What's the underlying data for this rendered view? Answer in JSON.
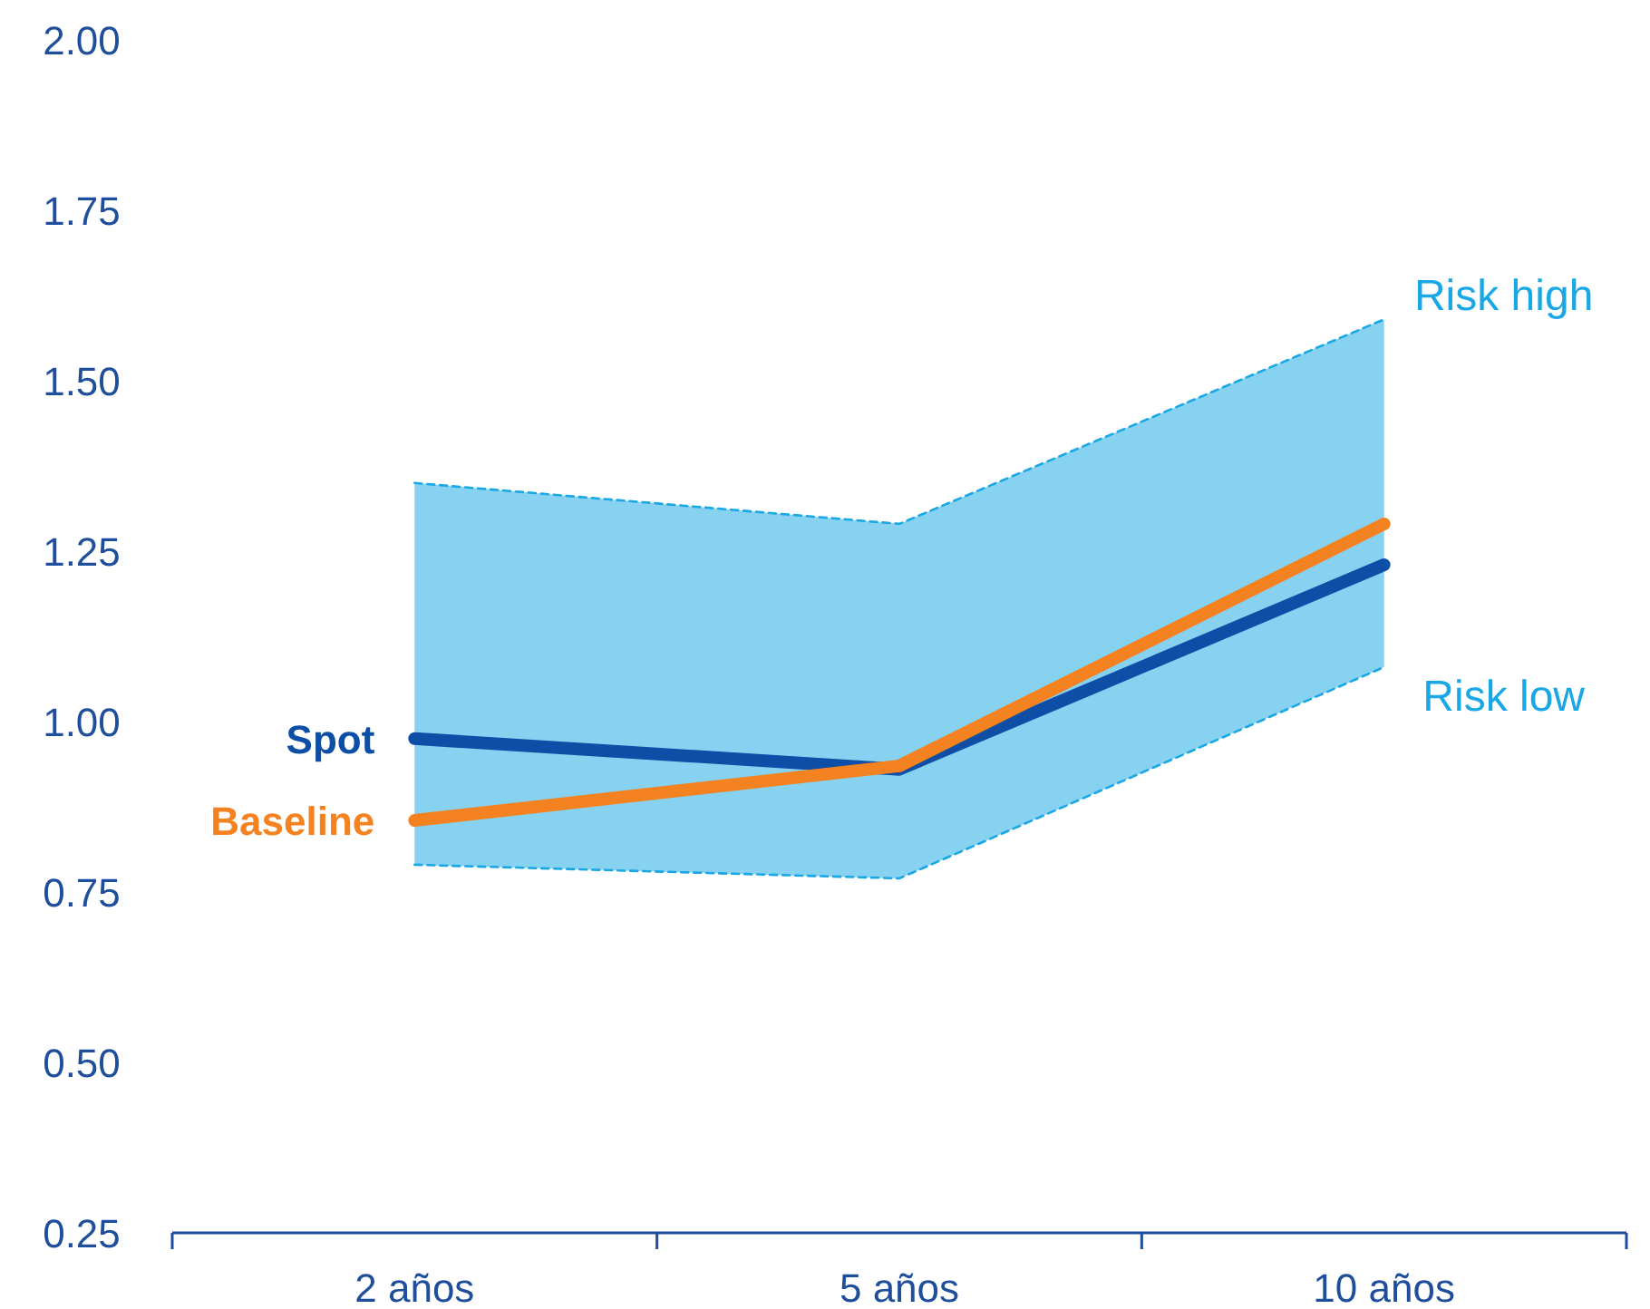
{
  "chart_data": {
    "type": "line",
    "categories": [
      "2 años",
      "5 años",
      "10 años"
    ],
    "ylim": [
      0.25,
      2
    ],
    "yticks": [
      {
        "value": 0.25,
        "label": "0.25"
      },
      {
        "value": 0.5,
        "label": "0.50"
      },
      {
        "value": 0.75,
        "label": "0.75"
      },
      {
        "value": 1,
        "label": "1.00"
      },
      {
        "value": 1.25,
        "label": "1.25"
      },
      {
        "value": 1.5,
        "label": "1.50"
      },
      {
        "value": 1.75,
        "label": "1.75"
      },
      {
        "value": 2,
        "label": "2.00"
      }
    ],
    "grid": false,
    "series": [
      {
        "name": "Risk high",
        "line_style": "dashed",
        "color": "#1aa7e6",
        "values": [
          1.35,
          1.29,
          1.59
        ],
        "lower": [
          0.79,
          0.77,
          1.08
        ],
        "upper": [
          1.35,
          1.29,
          1.59
        ]
      },
      {
        "name": "Risk low",
        "line_style": "dashed",
        "color": "#1aa7e6",
        "values": [
          0.79,
          0.77,
          1.08
        ]
      },
      {
        "name": "Spot",
        "line_style": "solid",
        "color": "#0d4ea6",
        "values": [
          0.975,
          0.93,
          1.23
        ]
      },
      {
        "name": "Baseline",
        "line_style": "solid",
        "color": "#f58220",
        "values": [
          0.855,
          0.935,
          1.29
        ]
      }
    ]
  }
}
